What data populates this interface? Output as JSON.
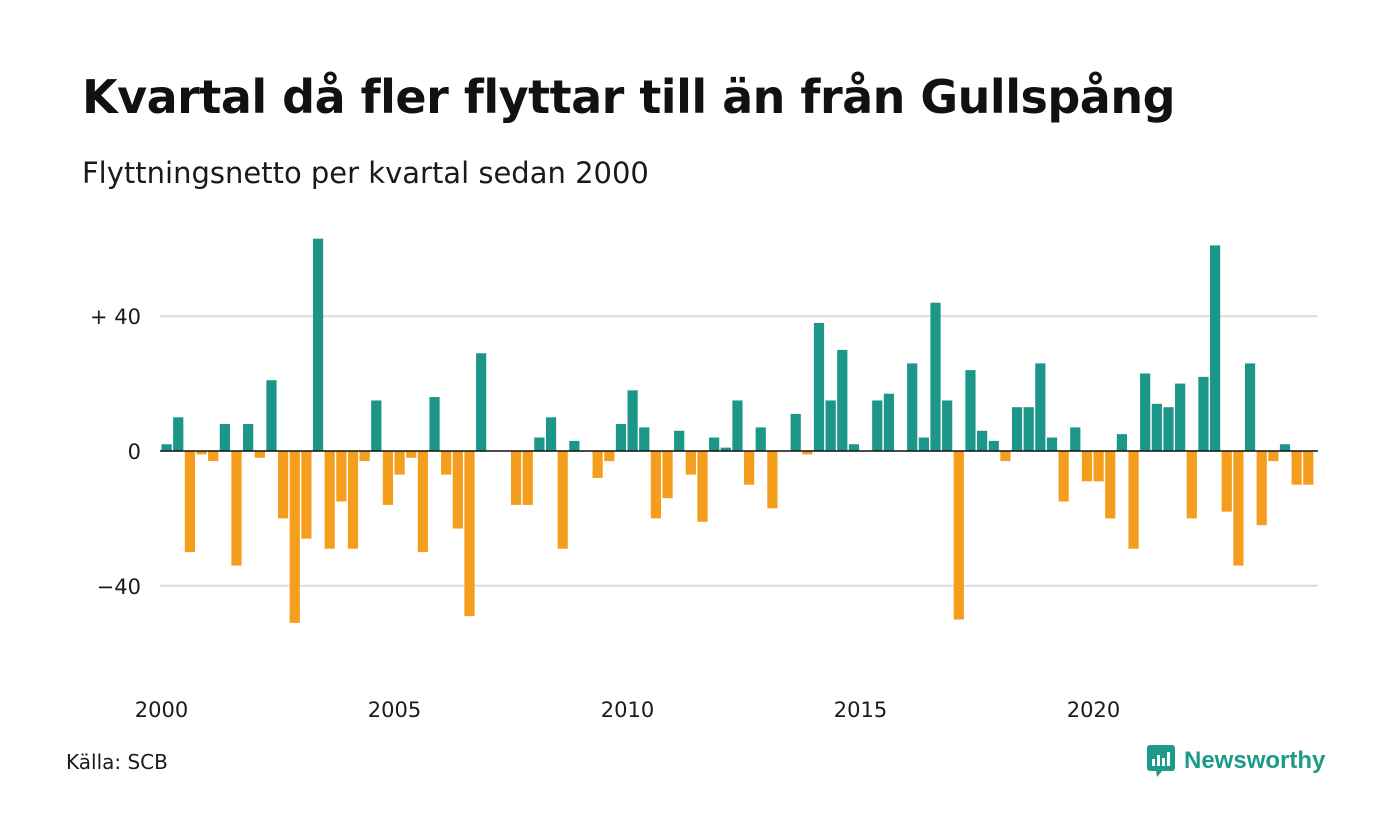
{
  "title": "Kvartal då fler flyttar till än från Gullspång",
  "subtitle": "Flyttningsnetto per kvartal sedan 2000",
  "source": "Källa: SCB",
  "brand": "Newsworthy",
  "icon": "newsworthy-logo-icon",
  "colors": {
    "positive": "#1b9688",
    "negative": "#f59d1d",
    "brand": "#1e9a8a",
    "grid": "#dddddd"
  },
  "chart_data": {
    "type": "bar",
    "x_start": 2000,
    "periods_per_year": 4,
    "x_tick_labels": [
      "2000",
      "2005",
      "2010",
      "2015",
      "2020"
    ],
    "y_tick_labels": [
      "+ 40",
      "0",
      "−40"
    ],
    "y_ticks": [
      40,
      0,
      -40
    ],
    "ylim": [
      -60,
      65
    ],
    "grid": true,
    "values": [
      2,
      10,
      -30,
      -1,
      -3,
      8,
      -34,
      8,
      -2,
      21,
      -20,
      -51,
      -26,
      63,
      -29,
      -15,
      -29,
      -3,
      15,
      -16,
      -7,
      -2,
      -30,
      16,
      -7,
      -23,
      -49,
      29,
      0,
      0,
      -16,
      -16,
      4,
      10,
      -29,
      3,
      0,
      -8,
      -3,
      8,
      18,
      7,
      -20,
      -14,
      6,
      -7,
      -21,
      4,
      1,
      15,
      -10,
      7,
      -17,
      0,
      11,
      -1,
      38,
      15,
      30,
      2,
      0,
      15,
      17,
      0,
      26,
      4,
      44,
      15,
      -50,
      24,
      6,
      3,
      -3,
      13,
      13,
      26,
      4,
      -15,
      7,
      -9,
      -9,
      -20,
      5,
      -29,
      23,
      14,
      13,
      20,
      -20,
      22,
      61,
      -18,
      -34,
      26,
      -22,
      -3,
      2,
      -10,
      -10
    ]
  }
}
